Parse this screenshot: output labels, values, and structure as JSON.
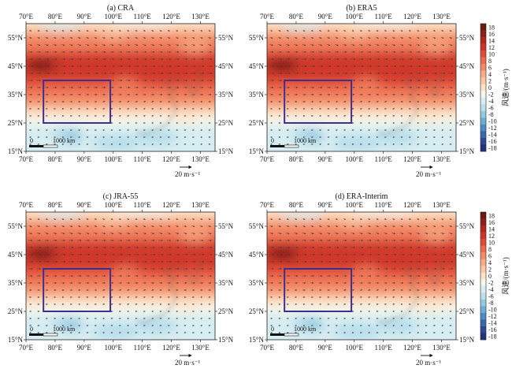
{
  "panels": [
    {
      "title": "(a) CRA"
    },
    {
      "title": "(b) ERA5"
    },
    {
      "title": "(c) JRA-55"
    },
    {
      "title": "(d) ERA-Interim"
    }
  ],
  "lon_ticks": [
    "70°E",
    "80°E",
    "90°E",
    "100°E",
    "110°E",
    "120°E",
    "130°E"
  ],
  "lat_ticks": [
    "55°N",
    "45°N",
    "35°N",
    "25°N",
    "15°N"
  ],
  "scalebar": {
    "zero": "0",
    "label": "1000 km"
  },
  "reference_vector": {
    "label": "20 m·s⁻¹"
  },
  "colorbar": {
    "title": "风速/(m·s⁻¹)",
    "labels": [
      "18",
      "16",
      "14",
      "12",
      "10",
      "8",
      "6",
      "4",
      "2",
      "0",
      "-2",
      "-4",
      "-6",
      "-8",
      "-10",
      "-12",
      "-14",
      "-16",
      "-18"
    ],
    "colors": [
      "#6b1a10",
      "#8e1e18",
      "#b2261f",
      "#d3322b",
      "#e34a36",
      "#ee6a4d",
      "#f48b66",
      "#f8ab84",
      "#fbc7a4",
      "#fde3c6",
      "#f3f7ee",
      "#d8eef2",
      "#b9e0ec",
      "#92cbe1",
      "#6aafd2",
      "#4d8cc2",
      "#3d67ad",
      "#2f4595",
      "#23307a"
    ]
  },
  "map": {
    "box_color": "#3b2f8f",
    "highlight_box": {
      "lon": [
        76,
        99
      ],
      "lat": [
        25,
        40
      ]
    }
  }
}
